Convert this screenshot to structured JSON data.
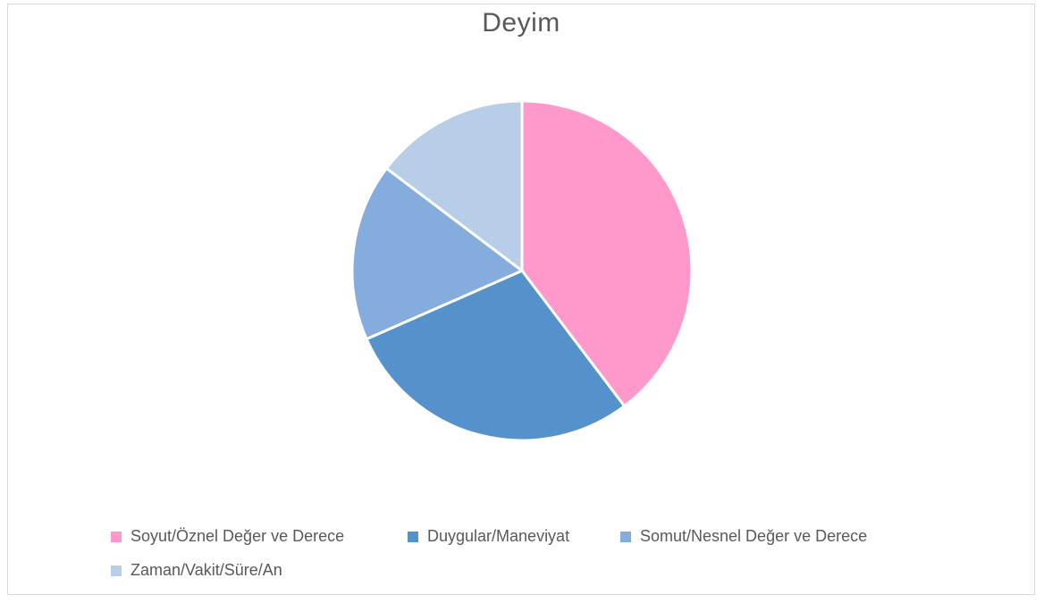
{
  "chart_data": {
    "type": "pie",
    "title": "Deyim",
    "categories": [
      "Soyut/Öznel Değer ve Derece",
      "Duygular/Maneviyat",
      "Somut/Nesnel Değer ve Derece",
      "Zaman/Vakit/Süre/An"
    ],
    "values": [
      39.7,
      28.7,
      16.9,
      14.7
    ],
    "colors": [
      "#ff99cc",
      "#5592cb",
      "#84acdc",
      "#b8cde8"
    ],
    "legend_position": "bottom"
  }
}
